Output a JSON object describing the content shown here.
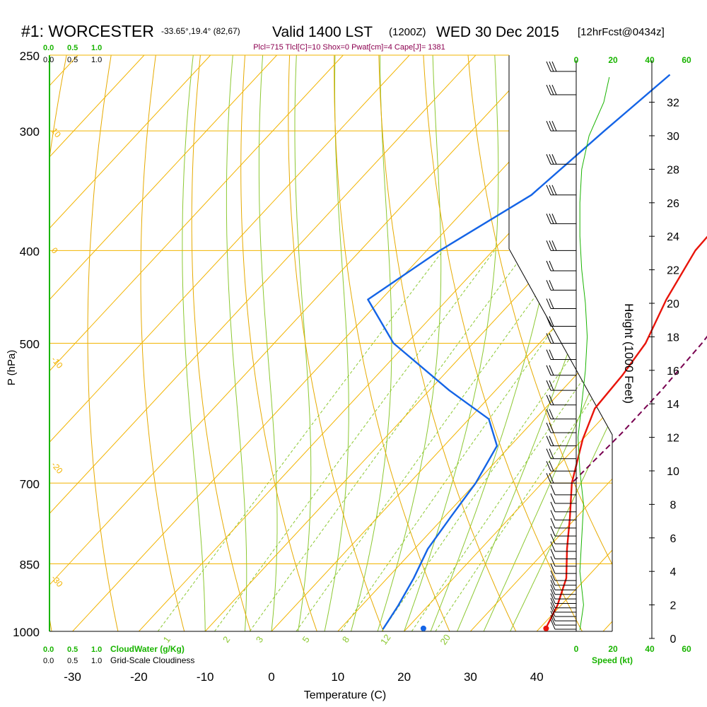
{
  "header": {
    "station": "#1: WORCESTER",
    "coords": "-33.65°,19.4° (82,67)",
    "valid": "Valid 1400 LST",
    "zulu": "(1200Z)",
    "date": "WED 30 Dec 2015",
    "forecast": "[12hrFcst@0434z]",
    "indices": "Plcl=715 Tlcl[C]=10 Shox=0 Pwat[cm]=4 Cape[J]= 1381"
  },
  "labels": {
    "y_left": "P (hPa)",
    "x_bottom": "Temperature (C)",
    "y_right": "Height (1000 Feet)",
    "cloudwater": "CloudWater (g/Kg)",
    "cloudiness": "Grid-Scale Cloudiness",
    "speed": "Speed (kt)"
  },
  "colors": {
    "isotherm": "#f2b400",
    "dry_adiabat": "#e6aa00",
    "moist_adiabat": "#8cc832",
    "mixing_ratio": "#8cc832",
    "temperature": "#e8140a",
    "dewpoint": "#1464e6",
    "parcel": "#780050",
    "green_text": "#19b400",
    "header_purple": "#8c0050"
  },
  "chart_data": {
    "type": "skew-t",
    "pressure_levels": [
      250,
      300,
      400,
      500,
      700,
      850,
      1000
    ],
    "pressure_labels": [
      "250",
      "300",
      "400",
      "500",
      "700",
      "850",
      "1000"
    ],
    "temperature_ticks": [
      -30,
      -20,
      -10,
      0,
      10,
      20,
      30,
      40
    ],
    "temperature_tick_labels": [
      "-30",
      "-20",
      "-10",
      "0",
      "10",
      "20",
      "30",
      "40"
    ],
    "xlim": [
      -33,
      53
    ],
    "ylim": [
      250,
      1000
    ],
    "top_scale": {
      "row1": [
        "0.0",
        "0.5",
        "1.0"
      ],
      "row2": [
        "0.0",
        "0.5",
        "1.0"
      ]
    },
    "bottom_scale": {
      "row1": [
        "0.0",
        "0.5",
        "1.0"
      ],
      "row2": [
        "0.0",
        "0.5",
        "1.0"
      ]
    },
    "isotherm_labels": [
      {
        "label": "10",
        "t": -33,
        "p": 300
      },
      {
        "label": "0",
        "t": -33,
        "p": 400
      },
      {
        "label": "-10",
        "t": -33,
        "p": 520
      },
      {
        "label": "-20",
        "t": -33,
        "p": 670
      },
      {
        "label": "-30",
        "t": -33,
        "p": 880
      },
      {
        "label": "0",
        "t": 37,
        "p": 340
      },
      {
        "label": "10",
        "t": 40,
        "p": 425
      },
      {
        "label": "20",
        "t": 42,
        "p": 490
      },
      {
        "label": "30",
        "t": 48,
        "p": 580
      }
    ],
    "mixing_ratio_labels": [
      {
        "label": "1",
        "t": -16,
        "p": 990
      },
      {
        "label": "2",
        "t": -7,
        "p": 990
      },
      {
        "label": "3",
        "t": -2,
        "p": 990
      },
      {
        "label": "5",
        "t": 5,
        "p": 990
      },
      {
        "label": "8",
        "t": 11,
        "p": 990
      },
      {
        "label": "12",
        "t": 17,
        "p": 990
      },
      {
        "label": "20",
        "t": 26,
        "p": 990
      }
    ],
    "mixing_ratio_values": [
      1,
      2,
      3,
      5,
      8,
      12,
      16,
      20
    ],
    "series": [
      {
        "name": "temperature",
        "points": [
          [
            5.5,
            262
          ],
          [
            9,
            300
          ],
          [
            10,
            350
          ],
          [
            10.5,
            400
          ],
          [
            13,
            450
          ],
          [
            16,
            500
          ],
          [
            17,
            540
          ],
          [
            17.5,
            585
          ],
          [
            20,
            630
          ],
          [
            24.5,
            700
          ],
          [
            29,
            760
          ],
          [
            33,
            820
          ],
          [
            37,
            880
          ],
          [
            39.5,
            940
          ],
          [
            41,
            995
          ]
        ]
      },
      {
        "name": "dewpoint",
        "points": [
          [
            -18,
            262
          ],
          [
            -20,
            300
          ],
          [
            -22,
            350
          ],
          [
            -28,
            400
          ],
          [
            -32,
            450
          ],
          [
            -22,
            500
          ],
          [
            -7,
            560
          ],
          [
            3,
            600
          ],
          [
            8,
            640
          ],
          [
            10,
            700
          ],
          [
            11,
            760
          ],
          [
            12,
            820
          ],
          [
            14,
            880
          ],
          [
            15.5,
            940
          ],
          [
            16.5,
            995
          ]
        ]
      },
      {
        "name": "parcel",
        "points": [
          [
            16,
            262
          ],
          [
            19,
            300
          ],
          [
            21.5,
            350
          ],
          [
            22.5,
            400
          ],
          [
            23.5,
            450
          ],
          [
            24.5,
            500
          ],
          [
            25,
            560
          ],
          [
            25,
            620
          ],
          [
            24.5,
            700
          ]
        ]
      }
    ],
    "surface_points": [
      {
        "name": "surface-temperature",
        "t": 41,
        "p": 993
      },
      {
        "name": "surface-dewpoint",
        "t": 22.5,
        "p": 993
      }
    ],
    "height_axis": {
      "ticks": [
        0,
        2,
        4,
        6,
        8,
        10,
        12,
        14,
        16,
        18,
        20,
        22,
        24,
        26,
        28,
        30,
        32
      ],
      "range": [
        0,
        34
      ]
    },
    "speed_axis": {
      "ticks": [
        0,
        20,
        40,
        60
      ],
      "tick_labels": [
        "0",
        "20",
        "40",
        "60"
      ]
    },
    "wind_speed_profile": [
      [
        2,
        0.5
      ],
      [
        4,
        2
      ],
      [
        2,
        4
      ],
      [
        3,
        6
      ],
      [
        4,
        8
      ],
      [
        2,
        10
      ],
      [
        1,
        12
      ],
      [
        3,
        14
      ],
      [
        5,
        16
      ],
      [
        6,
        18
      ],
      [
        5,
        20
      ],
      [
        3,
        22
      ],
      [
        2,
        24
      ],
      [
        2,
        26
      ],
      [
        3,
        28
      ],
      [
        7,
        30
      ],
      [
        15,
        32
      ],
      [
        18,
        33.5
      ]
    ],
    "wind_barb_pressures": [
      995,
      985,
      975,
      965,
      955,
      945,
      935,
      925,
      915,
      905,
      895,
      885,
      870,
      855,
      840,
      825,
      810,
      795,
      780,
      765,
      750,
      735,
      720,
      700,
      680,
      660,
      640,
      620,
      600,
      580,
      560,
      540,
      520,
      500,
      480,
      460,
      440,
      420,
      400,
      375,
      350,
      325,
      300,
      275,
      260
    ]
  }
}
